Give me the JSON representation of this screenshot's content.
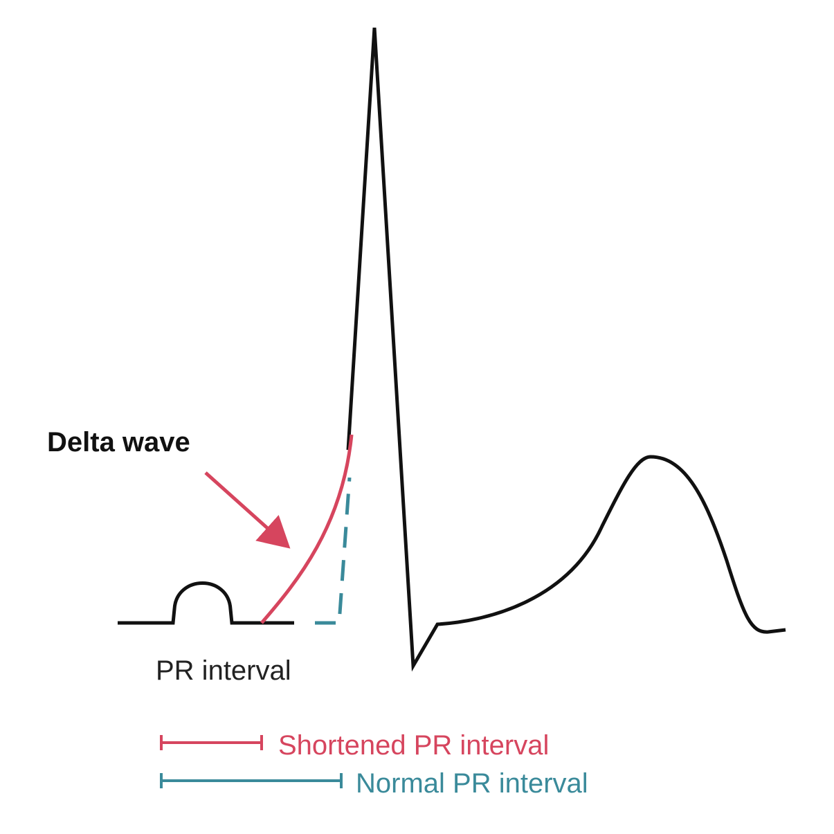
{
  "annotations": {
    "delta_wave": "Delta wave",
    "pr_interval": "PR interval"
  },
  "legend": {
    "shortened": "Shortened PR interval",
    "normal": "Normal PR interval"
  }
}
